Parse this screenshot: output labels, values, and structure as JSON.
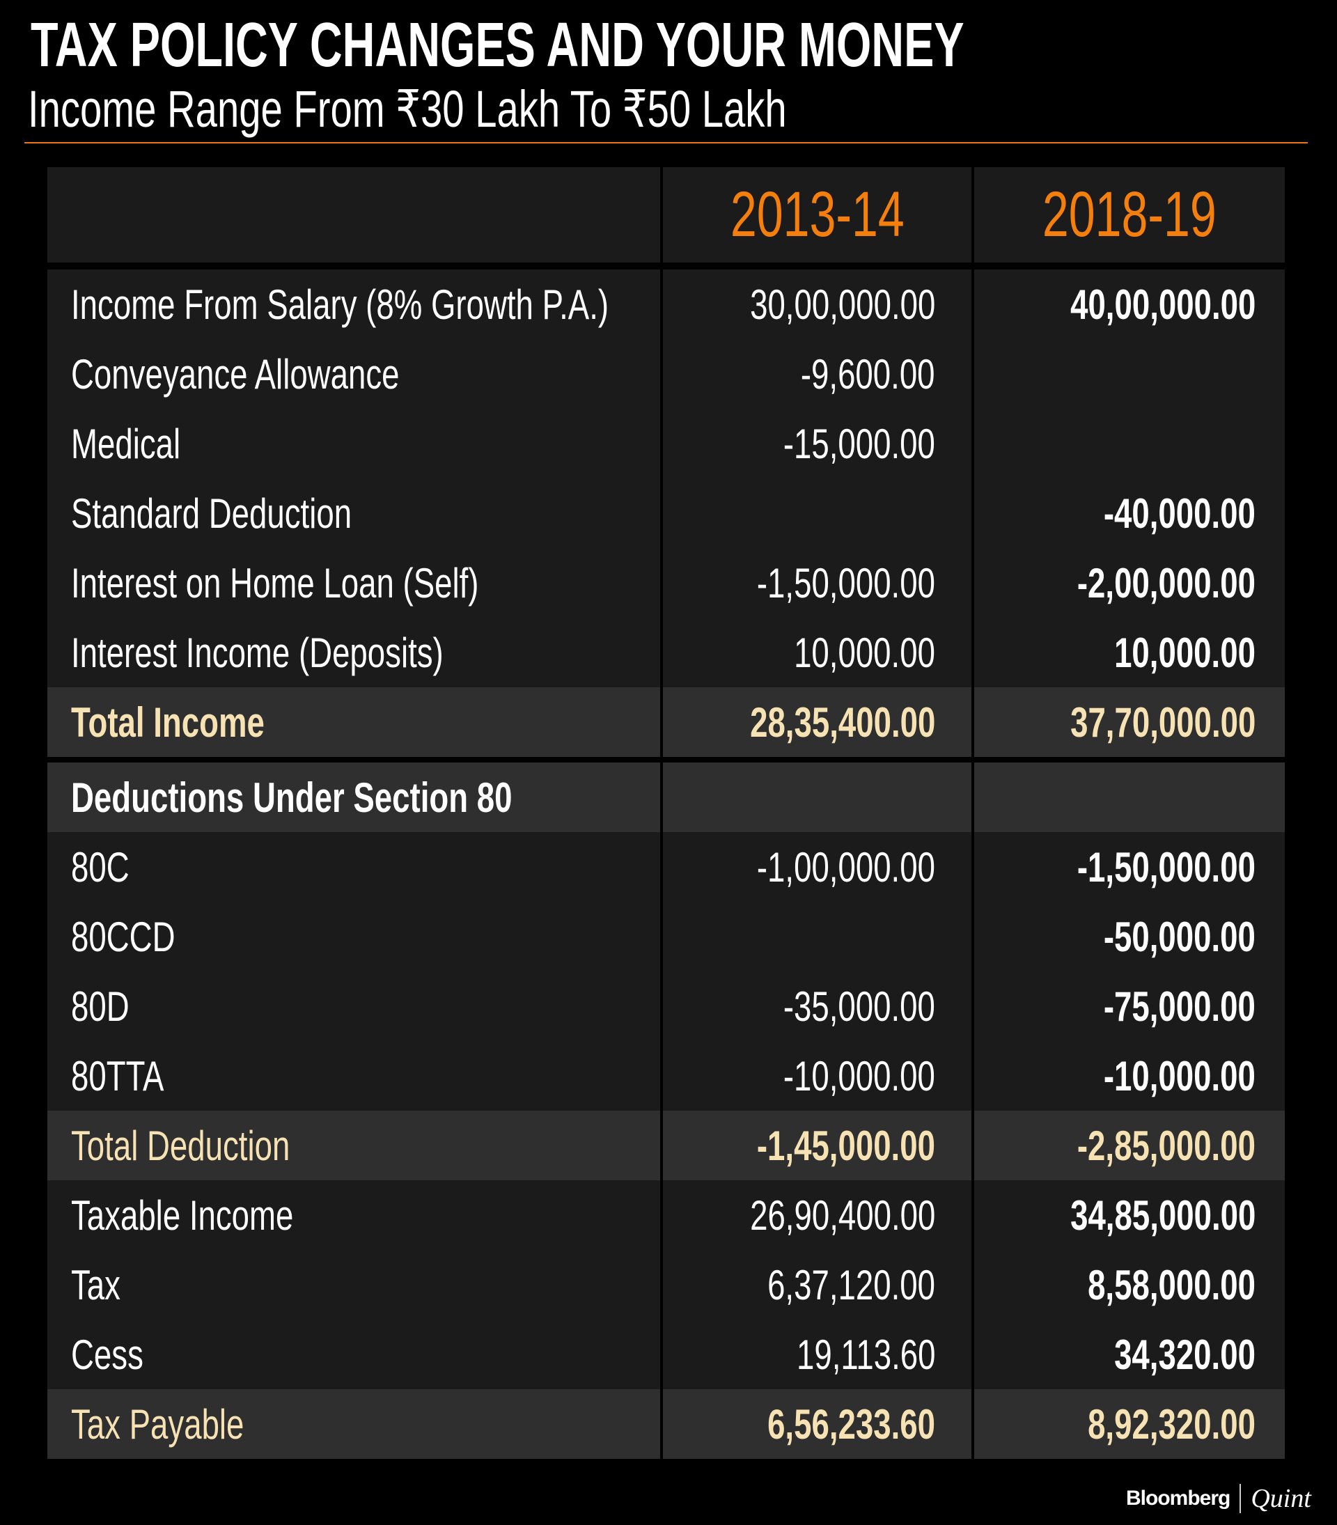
{
  "header": {
    "title": "TAX POLICY CHANGES AND YOUR MONEY",
    "subtitle": "Income Range From ₹30 Lakh To ₹50 Lakh"
  },
  "accent_color": "#f57f0c",
  "table": {
    "columns": [
      "",
      "2013-14",
      "2018-19"
    ],
    "rows": [
      {
        "label": "Income From Salary (8% Growth P.A.)",
        "v1": "30,00,000.00",
        "v2": "40,00,000.00"
      },
      {
        "label": "Conveyance Allowance",
        "v1": "-9,600.00",
        "v2": ""
      },
      {
        "label": "Medical",
        "v1": "-15,000.00",
        "v2": ""
      },
      {
        "label": "Standard Deduction",
        "v1": "",
        "v2": "-40,000.00"
      },
      {
        "label": "Interest on Home Loan (Self)",
        "v1": "-1,50,000.00",
        "v2": "-2,00,000.00"
      },
      {
        "label": "Interest Income (Deposits)",
        "v1": "10,000.00",
        "v2": "10,000.00"
      },
      {
        "label": "Total Income",
        "v1": "28,35,400.00",
        "v2": "37,70,000.00"
      },
      {
        "label": "Deductions Under Section 80",
        "v1": "",
        "v2": ""
      },
      {
        "label": "80C",
        "v1": "-1,00,000.00",
        "v2": "-1,50,000.00"
      },
      {
        "label": "80CCD",
        "v1": "",
        "v2": "-50,000.00"
      },
      {
        "label": "80D",
        "v1": "-35,000.00",
        "v2": "-75,000.00"
      },
      {
        "label": "80TTA",
        "v1": "-10,000.00",
        "v2": "-10,000.00"
      },
      {
        "label": "Total Deduction",
        "v1": "-1,45,000.00",
        "v2": "-2,85,000.00"
      },
      {
        "label": "Taxable Income",
        "v1": "26,90,400.00",
        "v2": "34,85,000.00"
      },
      {
        "label": "Tax",
        "v1": "6,37,120.00",
        "v2": "8,58,000.00"
      },
      {
        "label": "Cess",
        "v1": "19,113.60",
        "v2": "34,320.00"
      },
      {
        "label": "Tax Payable",
        "v1": "6,56,233.60",
        "v2": "8,92,320.00"
      }
    ]
  },
  "footer": {
    "brand": "Bloomberg",
    "brand2": "Quint"
  }
}
